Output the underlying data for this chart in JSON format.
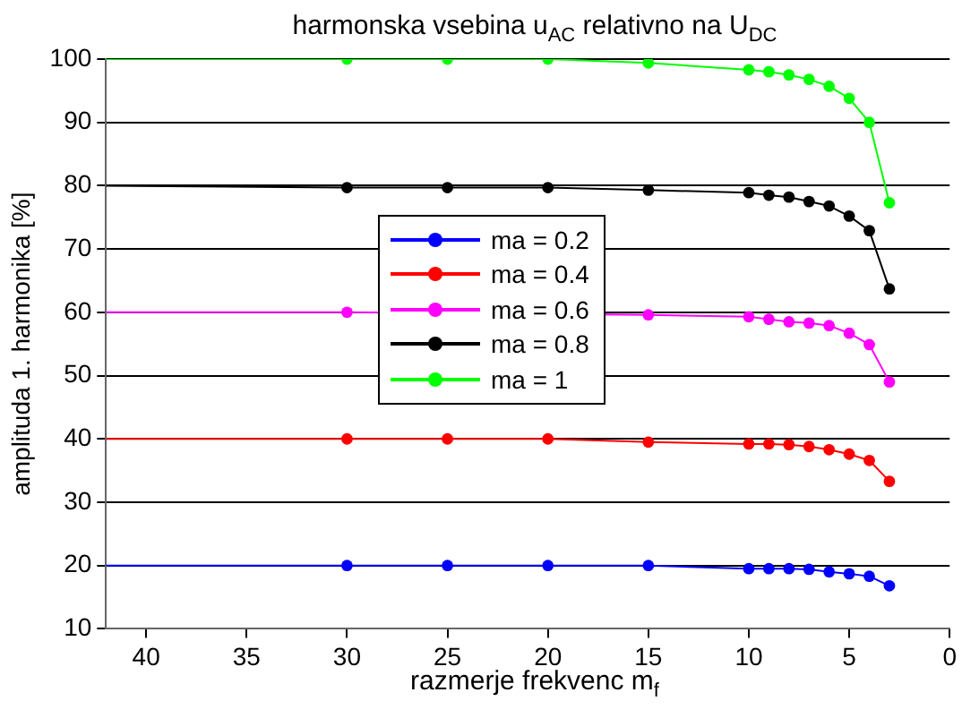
{
  "chart_data": {
    "type": "line",
    "title": "harmonska vsebina u$_{AC}$ relativno na U$_{DC}$",
    "xlabel": "razmerje frekvenc m$_{f}$",
    "ylabel": "amplituda 1. harmonika [%]",
    "x": [
      42,
      30,
      25,
      20,
      15,
      10,
      9,
      8,
      7,
      6,
      5,
      4,
      3
    ],
    "series": [
      {
        "name": "ma = 0.2",
        "color": "#0000ff",
        "values": [
          20,
          20,
          20,
          20,
          20,
          19.5,
          19.5,
          19.5,
          19.4,
          19,
          18.7,
          18.3,
          16.8
        ]
      },
      {
        "name": "ma = 0.4",
        "color": "#ff0000",
        "values": [
          40,
          40,
          40,
          40,
          39.5,
          39.2,
          39.2,
          39.1,
          38.8,
          38.3,
          37.6,
          36.6,
          33.3
        ]
      },
      {
        "name": "ma = 0.6",
        "color": "#ff00ff",
        "values": [
          60,
          60,
          null,
          null,
          59.6,
          59.3,
          58.9,
          58.5,
          58.3,
          57.9,
          56.7,
          54.9,
          49
        ]
      },
      {
        "name": "ma = 0.8",
        "color": "#000000",
        "values": [
          80,
          79.7,
          79.7,
          79.7,
          79.3,
          78.9,
          78.5,
          78.2,
          77.5,
          76.8,
          75.2,
          72.9,
          63.7
        ]
      },
      {
        "name": "ma = 1",
        "color": "#00ff00",
        "values": [
          100,
          100,
          100,
          100,
          99.4,
          98.3,
          98,
          97.5,
          96.8,
          95.7,
          93.8,
          90,
          77.3
        ]
      }
    ],
    "xlim": [
      42,
      0
    ],
    "xticks": [
      40,
      35,
      30,
      25,
      20,
      15,
      10,
      5,
      0
    ],
    "ylim": [
      10,
      100
    ],
    "yticks": [
      10,
      20,
      30,
      40,
      50,
      60,
      70,
      80,
      90,
      100
    ],
    "grid": "y",
    "legend": "center",
    "marker": "circle",
    "line_style": "solid"
  }
}
